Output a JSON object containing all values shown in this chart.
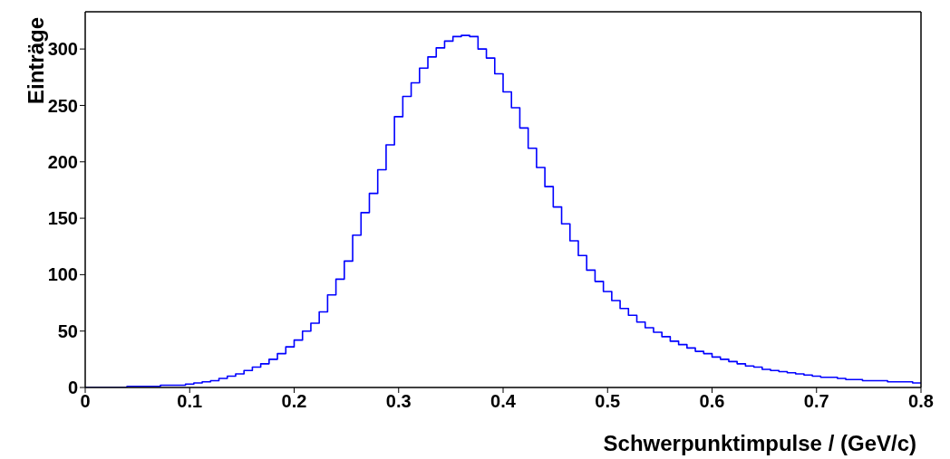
{
  "chart_data": {
    "type": "histogram",
    "xlabel": "Schwerpunktimpulse / (GeV/c)",
    "ylabel": "Einträge",
    "bins": [
      0,
      0.008,
      0.016,
      0.024,
      0.032,
      0.04,
      0.048,
      0.056,
      0.064,
      0.072,
      0.08,
      0.088,
      0.096,
      0.104,
      0.112,
      0.12,
      0.128,
      0.136,
      0.144,
      0.152,
      0.16,
      0.168,
      0.176,
      0.184,
      0.192,
      0.2,
      0.208,
      0.216,
      0.224,
      0.232,
      0.24,
      0.248,
      0.256,
      0.264,
      0.272,
      0.28,
      0.288,
      0.296,
      0.304,
      0.312,
      0.32,
      0.328,
      0.336,
      0.344,
      0.352,
      0.36,
      0.368,
      0.376,
      0.384,
      0.392,
      0.4,
      0.408,
      0.416,
      0.424,
      0.432,
      0.44,
      0.448,
      0.456,
      0.464,
      0.472,
      0.48,
      0.488,
      0.496,
      0.504,
      0.512,
      0.52,
      0.528,
      0.536,
      0.544,
      0.552,
      0.56,
      0.568,
      0.576,
      0.584,
      0.592,
      0.6,
      0.608,
      0.616,
      0.624,
      0.632,
      0.64,
      0.648,
      0.656,
      0.664,
      0.672,
      0.68,
      0.688,
      0.696,
      0.704,
      0.712,
      0.72,
      0.728,
      0.736,
      0.744,
      0.752,
      0.76,
      0.768,
      0.776,
      0.784,
      0.792,
      0.8
    ],
    "values": [
      0,
      0,
      0,
      0,
      0,
      1,
      1,
      1,
      1,
      2,
      2,
      2,
      3,
      4,
      5,
      6,
      8,
      10,
      12,
      15,
      18,
      21,
      25,
      30,
      36,
      42,
      50,
      57,
      67,
      82,
      96,
      112,
      135,
      155,
      172,
      193,
      215,
      240,
      258,
      270,
      283,
      293,
      301,
      307,
      311,
      312,
      311,
      300,
      292,
      278,
      262,
      248,
      230,
      212,
      195,
      178,
      160,
      145,
      130,
      117,
      104,
      94,
      85,
      77,
      70,
      64,
      58,
      53,
      49,
      45,
      41,
      38,
      35,
      32,
      30,
      27,
      25,
      23,
      21,
      19,
      18,
      16,
      15,
      14,
      13,
      12,
      11,
      10,
      9,
      9,
      8,
      7,
      7,
      6,
      6,
      6,
      5,
      5,
      5,
      4
    ],
    "color": "#0000ff",
    "xlim": [
      0,
      0.8
    ],
    "ylim": [
      0,
      333
    ],
    "xticks": [
      0,
      0.1,
      0.2,
      0.3,
      0.4,
      0.5,
      0.6,
      0.7,
      0.8
    ],
    "yticks": [
      0,
      50,
      100,
      150,
      200,
      250,
      300
    ]
  }
}
